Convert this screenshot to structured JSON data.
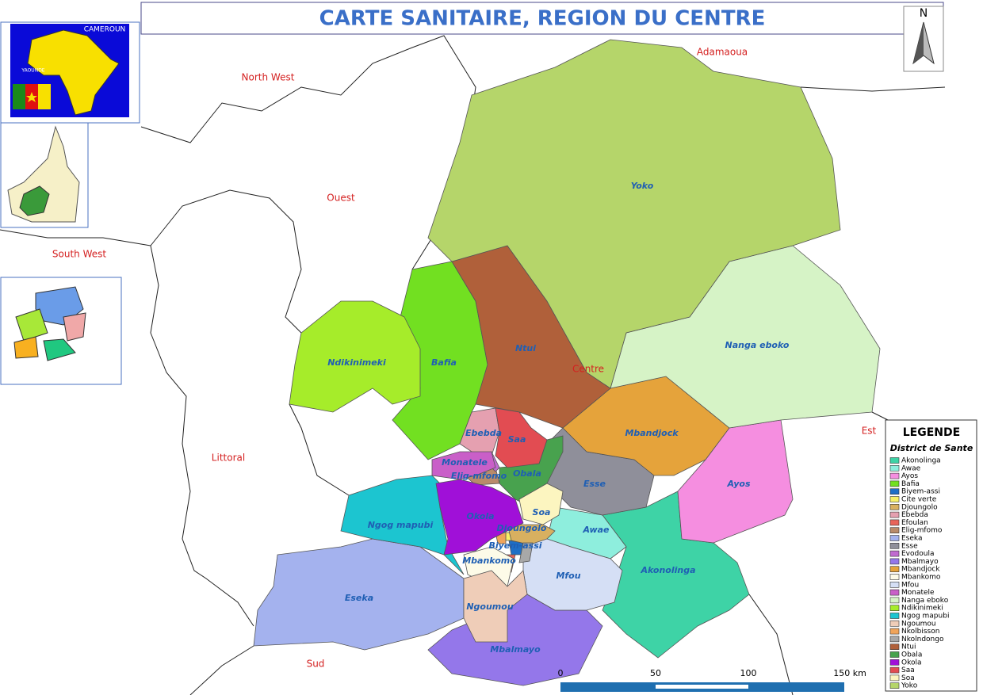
{
  "header": {
    "title": "CARTE SANITAIRE, REGION DU CENTRE",
    "north": "N"
  },
  "inset": {
    "country": "CAMEROUN",
    "capital": "YAOUNDE"
  },
  "regions": [
    "North West",
    "Ouest",
    "South West",
    "Littoral",
    "Sud",
    "Adamaoua",
    "Est",
    "Centre"
  ],
  "legend": {
    "title": "LEGENDE",
    "subtitle": "District de Sante"
  },
  "districts": [
    {
      "name": "Akonolinga",
      "color": "#3ed3a6"
    },
    {
      "name": "Awae",
      "color": "#8eeedd"
    },
    {
      "name": "Ayos",
      "color": "#f58ee0"
    },
    {
      "name": "Bafia",
      "color": "#72e021"
    },
    {
      "name": "Biyem-assi",
      "color": "#1e6fc6"
    },
    {
      "name": "Cite verte",
      "color": "#f7f066"
    },
    {
      "name": "Djoungolo",
      "color": "#d8b060"
    },
    {
      "name": "Ebebda",
      "color": "#e5a0b0"
    },
    {
      "name": "Efoulan",
      "color": "#e8645a"
    },
    {
      "name": "Elig-mfomo",
      "color": "#b98b6a"
    },
    {
      "name": "Eseka",
      "color": "#a4b2ee"
    },
    {
      "name": "Esse",
      "color": "#8f8f9a"
    },
    {
      "name": "Evodoula",
      "color": "#c06ad0"
    },
    {
      "name": "Mbalmayo",
      "color": "#9477ea"
    },
    {
      "name": "Mbandjock",
      "color": "#e5a33b"
    },
    {
      "name": "Mbankomo",
      "color": "#fdfbe8"
    },
    {
      "name": "Mfou",
      "color": "#d5dff5"
    },
    {
      "name": "Monatele",
      "color": "#c95fc8"
    },
    {
      "name": "Nanga eboko",
      "color": "#d6f3c6"
    },
    {
      "name": "Ndikinimeki",
      "color": "#a6ec2a"
    },
    {
      "name": "Ngog mapubi",
      "color": "#1cc5d0"
    },
    {
      "name": "Ngoumou",
      "color": "#efcdb8"
    },
    {
      "name": "Nkolbisson",
      "color": "#f0a45a"
    },
    {
      "name": "Nkolndongo",
      "color": "#a8a8a8"
    },
    {
      "name": "Ntui",
      "color": "#b0603a"
    },
    {
      "name": "Obala",
      "color": "#48a24e"
    },
    {
      "name": "Okola",
      "color": "#a010d8"
    },
    {
      "name": "Saa",
      "color": "#e24c52"
    },
    {
      "name": "Soa",
      "color": "#fcf5c0"
    },
    {
      "name": "Yoko",
      "color": "#b5d56a"
    }
  ],
  "scale": {
    "labels": [
      "0",
      "50",
      "100",
      "150 km"
    ]
  }
}
